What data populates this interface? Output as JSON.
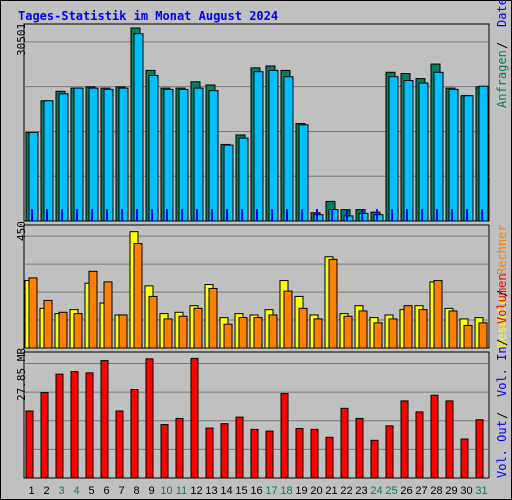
{
  "title": "Tages-Statistik im Monat August 2024",
  "colors": {
    "background": "#c0c0c0",
    "title": "#0000ff",
    "hits": "#008060",
    "files": "#00c0ff",
    "pages": "#00e0ff",
    "visits": "#ffff00",
    "sites": "#ff8000",
    "kbytes": "#ff0000",
    "vol_in": "#0000ff",
    "vol_out": "#0000ff",
    "day_normal": "#000000",
    "day_weekend": "#008060"
  },
  "panels": {
    "top": {
      "ymax_label": "30501",
      "legend": [
        {
          "text": "Anfragen",
          "color": "#008060"
        },
        {
          "text": "Dateien",
          "color": "#0000ff"
        },
        {
          "text": "Seiten",
          "color": "#00c0ff"
        }
      ]
    },
    "mid": {
      "ymax_label": "450",
      "legend": [
        {
          "text": "Besuche",
          "color": "#ffff00"
        },
        {
          "text": "Rechner",
          "color": "#ff8000"
        }
      ]
    },
    "bottom": {
      "ymax_label": "27.85 MB",
      "legend": [
        {
          "text": "Vol. Out",
          "color": "#0000ff"
        },
        {
          "text": "Vol. In",
          "color": "#0000ff"
        },
        {
          "text": "Volumen",
          "color": "#ff0000"
        }
      ]
    }
  },
  "chart_data": {
    "type": "bar",
    "title": "Tages-Statistik im Monat August 2024",
    "categories": [
      "1",
      "2",
      "3",
      "4",
      "5",
      "6",
      "7",
      "8",
      "9",
      "10",
      "11",
      "12",
      "13",
      "14",
      "15",
      "16",
      "17",
      "18",
      "19",
      "20",
      "21",
      "22",
      "23",
      "24",
      "25",
      "26",
      "27",
      "28",
      "29",
      "30",
      "31"
    ],
    "weekend_days": [
      "3",
      "4",
      "10",
      "11",
      "17",
      "18",
      "24",
      "25",
      "31"
    ],
    "requests": {
      "ylim": [
        0,
        30501
      ],
      "series": [
        {
          "name": "Anfragen",
          "values": [
            14000,
            19000,
            20500,
            21000,
            21200,
            21000,
            21200,
            30500,
            23800,
            21000,
            21000,
            22000,
            21500,
            12100,
            13600,
            24200,
            24500,
            23800,
            15400,
            1300,
            3100,
            1800,
            1800,
            1400,
            23500,
            23300,
            22500,
            24800,
            21000,
            19800,
            21200
          ]
        },
        {
          "name": "Dateien",
          "values": [
            14000,
            19000,
            20100,
            21000,
            21000,
            20800,
            21000,
            29600,
            23000,
            20800,
            20800,
            21000,
            20600,
            12000,
            13100,
            23600,
            23800,
            22800,
            15200,
            1000,
            1800,
            800,
            1200,
            1000,
            22800,
            22200,
            21800,
            23500,
            20800,
            19800,
            21300
          ]
        },
        {
          "name": "Seiten",
          "values": [
            0,
            0,
            0,
            0,
            0,
            0,
            0,
            0,
            0,
            0,
            0,
            0,
            0,
            0,
            0,
            0,
            0,
            0,
            0,
            0,
            0,
            0,
            0,
            0,
            0,
            0,
            0,
            0,
            0,
            0,
            0
          ]
        }
      ]
    },
    "visits": {
      "ylim": [
        0,
        450
      ],
      "series": [
        {
          "name": "Besuche",
          "values": [
            255,
            150,
            130,
            145,
            245,
            170,
            125,
            440,
            235,
            130,
            135,
            160,
            240,
            115,
            130,
            125,
            145,
            255,
            195,
            125,
            345,
            130,
            160,
            115,
            125,
            145,
            160,
            250,
            150,
            110,
            115
          ]
        },
        {
          "name": "Rechner",
          "values": [
            265,
            180,
            135,
            130,
            290,
            250,
            125,
            395,
            195,
            110,
            120,
            150,
            225,
            90,
            115,
            115,
            125,
            215,
            150,
            110,
            335,
            120,
            140,
            95,
            110,
            160,
            145,
            255,
            140,
            85,
            95
          ]
        }
      ]
    },
    "volume": {
      "ylim": [
        0,
        27.85
      ],
      "series": [
        {
          "name": "Volumen",
          "values": [
            15.3,
            19.5,
            23.7,
            24.3,
            24.0,
            26.8,
            15.3,
            20.2,
            27.2,
            12.2,
            13.6,
            27.3,
            11.4,
            12.4,
            13.9,
            11.1,
            10.7,
            19.3,
            11.3,
            11.1,
            9.3,
            15.9,
            13.6,
            8.6,
            11.9,
            17.6,
            15.1,
            18.9,
            17.6,
            8.9,
            13.3
          ]
        },
        {
          "name": "Vol. In",
          "values": [
            0,
            0,
            0,
            0,
            0,
            0,
            0,
            0,
            0,
            0,
            0,
            0,
            0,
            0,
            0,
            0,
            0,
            0,
            0,
            0,
            0,
            0,
            0,
            0,
            0,
            0,
            0,
            0,
            0,
            0,
            0
          ]
        },
        {
          "name": "Vol. Out",
          "values": [
            0,
            0,
            0,
            0,
            0,
            0,
            0,
            0,
            0,
            0,
            0,
            0,
            0,
            0,
            0,
            0,
            0,
            0,
            0,
            0,
            0,
            0,
            0,
            0,
            0,
            0,
            0,
            0,
            0,
            0,
            0
          ]
        }
      ]
    }
  }
}
